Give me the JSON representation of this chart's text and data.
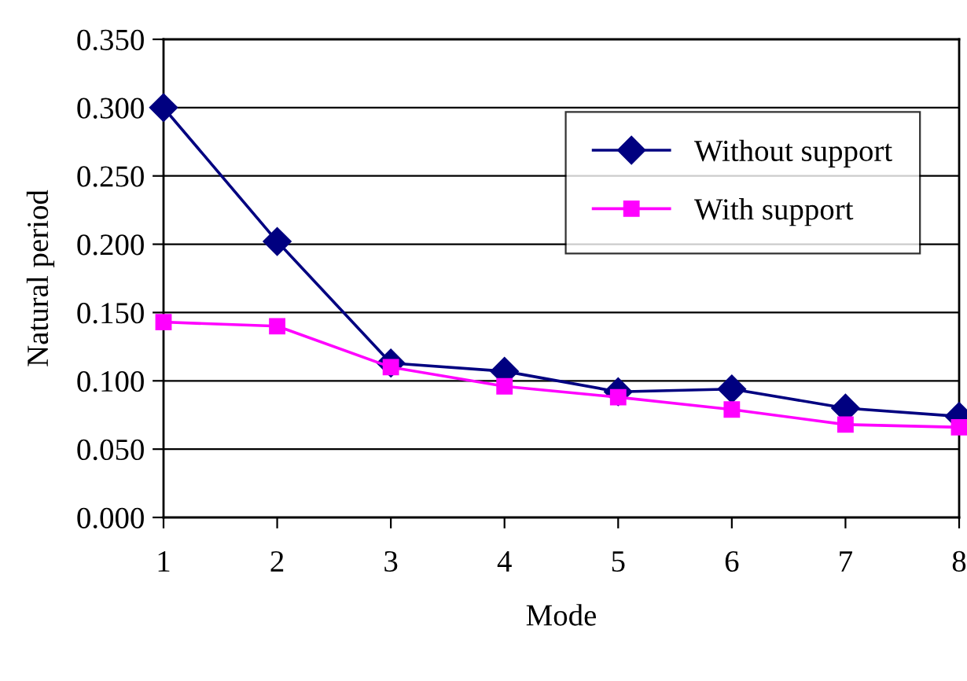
{
  "chart_data": {
    "type": "line",
    "xlabel": "Mode",
    "ylabel": "Natural period",
    "x": [
      1,
      2,
      3,
      4,
      5,
      6,
      7,
      8
    ],
    "series": [
      {
        "name": "Without support",
        "color": "#000080",
        "marker": "diamond",
        "values": [
          0.3,
          0.202,
          0.113,
          0.107,
          0.092,
          0.094,
          0.08,
          0.074
        ]
      },
      {
        "name": "With support",
        "color": "#ff00ff",
        "marker": "square",
        "values": [
          0.143,
          0.14,
          0.11,
          0.096,
          0.088,
          0.079,
          0.068,
          0.066
        ]
      }
    ],
    "xlim": [
      1,
      8
    ],
    "xticks": [
      1,
      2,
      3,
      4,
      5,
      6,
      7,
      8
    ],
    "ylim": [
      0,
      0.35
    ],
    "yticks": [
      {
        "value": 0,
        "label": "0.000"
      },
      {
        "value": 0.05,
        "label": "0.050"
      },
      {
        "value": 0.1,
        "label": "0.100"
      },
      {
        "value": 0.15,
        "label": "0.150"
      },
      {
        "value": 0.2,
        "label": "0.200"
      },
      {
        "value": 0.25,
        "label": "0.250"
      },
      {
        "value": 0.3,
        "label": "0.300"
      },
      {
        "value": 0.35,
        "label": "0.350"
      }
    ],
    "grid": "y",
    "legend": "upper right",
    "line_style": "solid"
  }
}
